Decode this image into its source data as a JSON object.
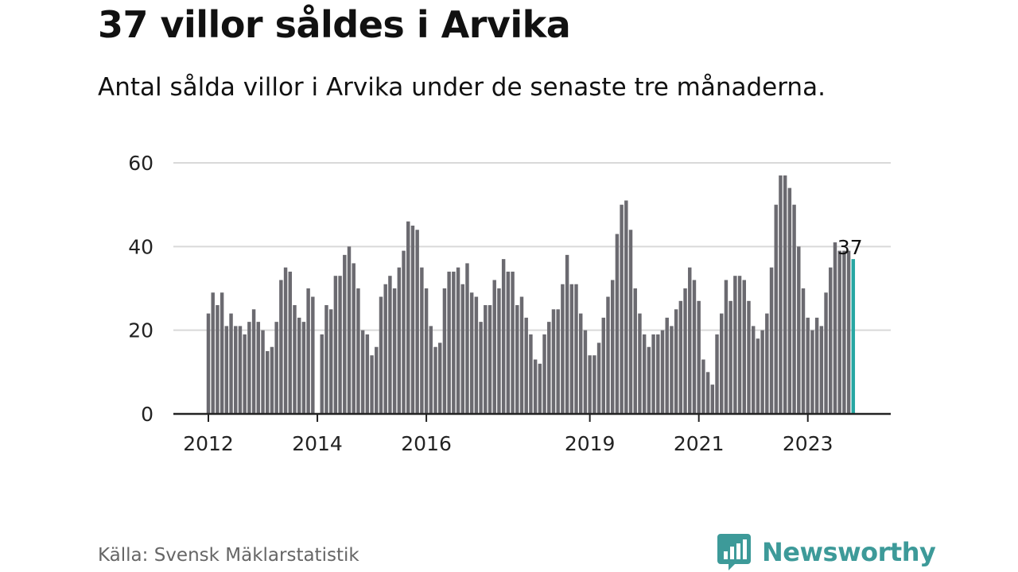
{
  "header": {
    "title": "37 villor såldes i Arvika",
    "subtitle": "Antal sålda villor i Arvika under de senaste tre månaderna."
  },
  "footer": {
    "source": "Källa: Svensk Mäklarstatistik",
    "brand": "Newsworthy",
    "brand_icon": "newsworthy-logo-icon"
  },
  "colors": {
    "bar": "#6b6a70",
    "highlight": "#27a7a3",
    "grid": "#d9d9d9",
    "axis": "#222222",
    "brand": "#3d9a99"
  },
  "chart_data": {
    "type": "bar",
    "ylim": [
      0,
      60
    ],
    "yticks": [
      0,
      20,
      40,
      60
    ],
    "grid": true,
    "x_tick_labels": [
      {
        "label": "2012",
        "index": 0
      },
      {
        "label": "2014",
        "index": 24
      },
      {
        "label": "2016",
        "index": 48
      },
      {
        "label": "2019",
        "index": 84
      },
      {
        "label": "2021",
        "index": 108
      },
      {
        "label": "2023",
        "index": 132
      }
    ],
    "start_month": "2012-01",
    "values": [
      24,
      29,
      26,
      29,
      21,
      24,
      21,
      21,
      19,
      22,
      25,
      22,
      20,
      15,
      16,
      22,
      32,
      35,
      34,
      26,
      23,
      22,
      30,
      28,
      0,
      19,
      26,
      25,
      33,
      33,
      38,
      40,
      36,
      30,
      20,
      19,
      14,
      16,
      28,
      31,
      33,
      30,
      35,
      39,
      46,
      45,
      44,
      35,
      30,
      21,
      16,
      17,
      30,
      34,
      34,
      35,
      31,
      36,
      29,
      28,
      22,
      26,
      26,
      32,
      30,
      37,
      34,
      34,
      26,
      28,
      23,
      19,
      13,
      12,
      19,
      22,
      25,
      25,
      31,
      38,
      31,
      31,
      24,
      20,
      14,
      14,
      17,
      23,
      28,
      32,
      43,
      50,
      51,
      44,
      30,
      24,
      19,
      16,
      19,
      19,
      20,
      23,
      21,
      25,
      27,
      30,
      35,
      32,
      27,
      13,
      10,
      7,
      19,
      24,
      32,
      27,
      33,
      33,
      32,
      27,
      21,
      18,
      20,
      24,
      35,
      50,
      57,
      57,
      54,
      50,
      40,
      30,
      23,
      20,
      23,
      21,
      29,
      35,
      41,
      39,
      39,
      39,
      37
    ],
    "highlight_label": "37"
  }
}
